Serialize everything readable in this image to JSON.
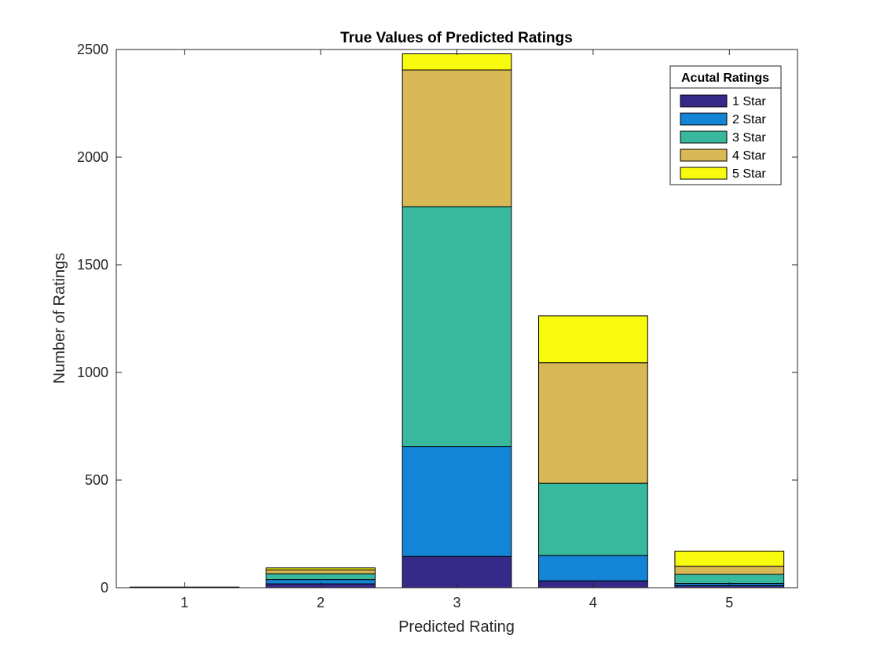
{
  "chart_data": {
    "type": "bar",
    "stacked": true,
    "title": "True Values of Predicted Ratings",
    "xlabel": "Predicted Rating",
    "ylabel": "Number of Ratings",
    "categories": [
      "1",
      "2",
      "3",
      "4",
      "5"
    ],
    "ylim": [
      0,
      2500
    ],
    "yticks": [
      0,
      500,
      1000,
      1500,
      2000,
      2500
    ],
    "grid": false,
    "legend": {
      "title": "Acutal Ratings",
      "placement": "top-right"
    },
    "series": [
      {
        "name": "1 Star",
        "color": "#352a87",
        "values": [
          2,
          18,
          145,
          32,
          10
        ]
      },
      {
        "name": "2 Star",
        "color": "#1384d6",
        "values": [
          0,
          20,
          510,
          118,
          10
        ]
      },
      {
        "name": "3 Star",
        "color": "#38b99e",
        "values": [
          1,
          27,
          1115,
          335,
          42
        ]
      },
      {
        "name": "4 Star",
        "color": "#d9b955",
        "values": [
          0,
          18,
          635,
          560,
          38
        ]
      },
      {
        "name": "5 Star",
        "color": "#f9fb0e",
        "values": [
          0,
          9,
          75,
          218,
          70
        ]
      }
    ]
  }
}
